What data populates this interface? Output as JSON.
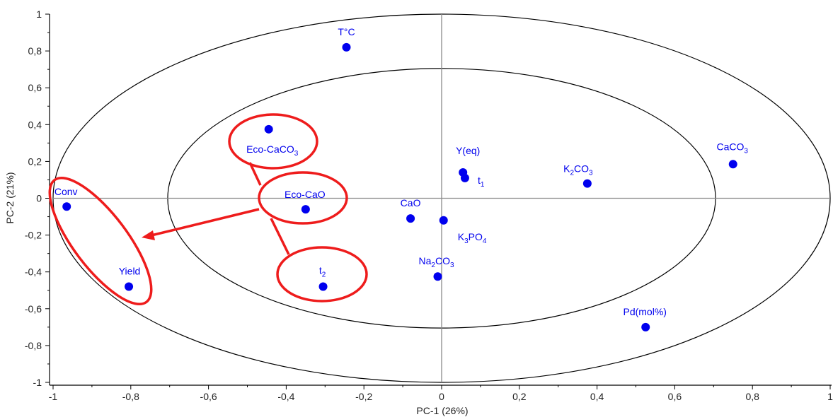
{
  "chart_data": {
    "type": "scatter",
    "title": "",
    "xlabel": "PC-1 (26%)",
    "ylabel": "PC-2 (21%)",
    "xlim": [
      -1,
      1
    ],
    "ylim": [
      -1,
      1
    ],
    "x_ticks": [
      "-1",
      "-0,8",
      "-0,6",
      "-0,4",
      "-0,2",
      "0",
      "0,2",
      "0,4",
      "0,6",
      "0,8",
      "1"
    ],
    "y_ticks": [
      "1",
      "0,8",
      "0,6",
      "0,4",
      "0,2",
      "0",
      "-0,2",
      "-0,4",
      "-0,6",
      "-0,8",
      "-1"
    ],
    "grid": false,
    "point_color": "#0000ee",
    "highlight_color": "#ee1c1c",
    "points": [
      {
        "label": "T°C",
        "x": -0.245,
        "y": 0.82
      },
      {
        "label": "Eco-CaCO",
        "sub": "3",
        "x": -0.445,
        "y": 0.375
      },
      {
        "label": "Y(eq)",
        "x": 0.055,
        "y": 0.14
      },
      {
        "label": "t",
        "sub": "1",
        "x": 0.06,
        "y": 0.11
      },
      {
        "label": "K",
        "sub": "2",
        "suffix": "CO",
        "sub2": "3",
        "x": 0.375,
        "y": 0.08
      },
      {
        "label": "CaCO",
        "sub": "3",
        "x": 0.75,
        "y": 0.185
      },
      {
        "label": "Conv",
        "x": -0.965,
        "y": -0.045
      },
      {
        "label": "Eco-CaO",
        "x": -0.35,
        "y": -0.06
      },
      {
        "label": "CaO",
        "x": -0.08,
        "y": -0.11
      },
      {
        "label": "K",
        "sub": "3",
        "suffix": "PO",
        "sub2": "4",
        "x": 0.005,
        "y": -0.12
      },
      {
        "label": "Na",
        "sub": "2",
        "suffix": "CO",
        "sub2": "3",
        "x": -0.01,
        "y": -0.425
      },
      {
        "label": "Yield",
        "x": -0.805,
        "y": -0.48
      },
      {
        "label": "t",
        "sub": "2",
        "x": -0.305,
        "y": -0.48
      },
      {
        "label": "Pd(mol%)",
        "x": 0.525,
        "y": -0.7
      }
    ],
    "correlation_circles": [
      {
        "rx": 1.0,
        "ry": 1.0
      },
      {
        "rx": 0.705,
        "ry": 0.705
      }
    ]
  }
}
